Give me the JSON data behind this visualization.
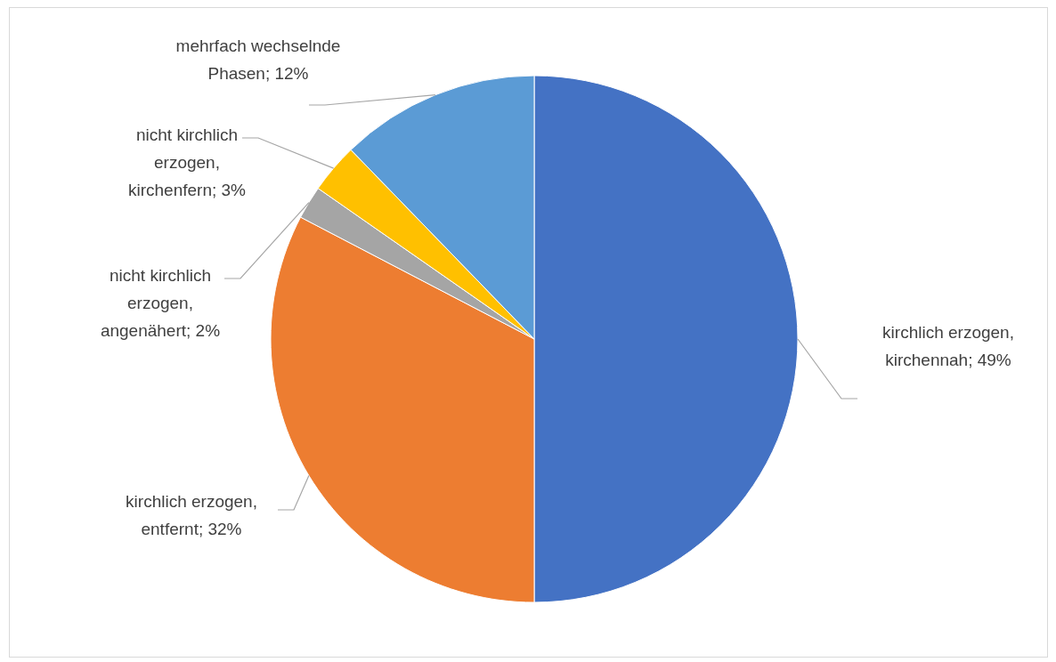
{
  "chart_data": {
    "type": "pie",
    "categories": [
      "kirchlich erzogen, kirchennah",
      "kirchlich erzogen, entfernt",
      "nicht kirchlich erzogen, angenähert",
      "nicht kirchlich erzogen, kirchenfern",
      "mehrfach wechselnde Phasen"
    ],
    "values": [
      49,
      32,
      2,
      3,
      12
    ],
    "value_labels": [
      "49%",
      "32%",
      "2%",
      "3%",
      "12%"
    ],
    "colors": [
      "#4472c4",
      "#ed7d31",
      "#a5a5a5",
      "#ffc000",
      "#5b9bd5"
    ],
    "legend": false
  }
}
